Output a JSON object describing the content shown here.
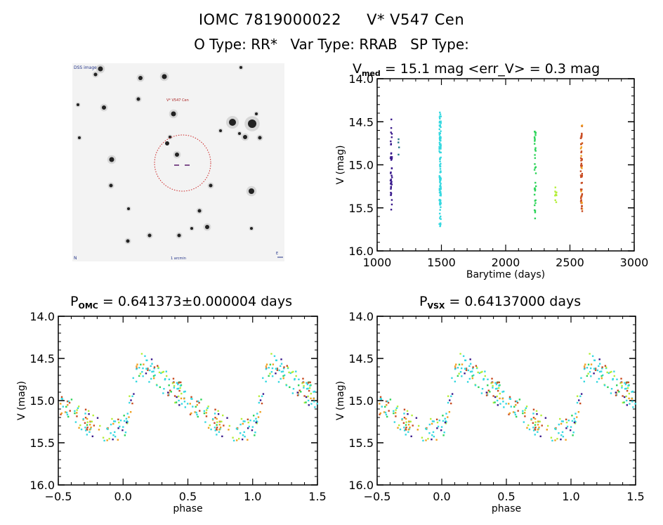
{
  "header": {
    "id": "IOMC 7819000022",
    "name": "V* V547 Cen",
    "otype_label": "O Type:",
    "otype": "RR*",
    "vartype_label": "Var Type:",
    "vartype": "RRAB",
    "sptype_label": "SP Type:",
    "sptype": ""
  },
  "image_panel": {
    "label_top_left": "DSS image",
    "label_target": "V* V547 Cen",
    "label_bottom_left": "N",
    "label_bottom_center": "1 arcmin",
    "label_bottom_right": "E",
    "circle_color": "#cc2222",
    "marker_color": "#5a1a6a"
  },
  "colors": {
    "epoch1": "#3a1a8c",
    "epoch1b": "#2a7a8a",
    "epoch2": "#35d8e0",
    "epoch3": "#2ed45a",
    "epoch4": "#b4ee3a",
    "epoch5": "#c84a20",
    "epoch5b": "#f0a020"
  },
  "chart_data": [
    {
      "type": "scatter",
      "title_main": "V",
      "title_sub": "med",
      "title_rest": " = 15.1 mag <err_V> = 0.3 mag",
      "xlabel": "Barytime (days)",
      "ylabel": "V (mag)",
      "xlim": [
        1000,
        3000
      ],
      "ylim": [
        16.0,
        14.0
      ],
      "xticks": [
        "1000",
        "1500",
        "2000",
        "2500",
        "3000"
      ],
      "yticks": [
        "14.0",
        "14.5",
        "15.0",
        "15.5",
        "16.0"
      ],
      "series": [
        {
          "name": "epoch1",
          "color": "#3a1a8c",
          "x": 1110,
          "vmin": 14.45,
          "vmax": 15.55,
          "n": 40
        },
        {
          "name": "epoch1b",
          "color": "#2a7a8a",
          "x": 1165,
          "vmin": 14.7,
          "vmax": 14.9,
          "n": 4
        },
        {
          "name": "epoch2",
          "color": "#35d8e0",
          "x": 1490,
          "vmin": 14.38,
          "vmax": 15.72,
          "n": 120
        },
        {
          "name": "epoch3",
          "color": "#2ed45a",
          "x": 2230,
          "vmin": 14.6,
          "vmax": 15.63,
          "n": 35
        },
        {
          "name": "epoch4",
          "color": "#b4ee3a",
          "x": 2390,
          "vmin": 15.25,
          "vmax": 15.45,
          "n": 10
        },
        {
          "name": "epoch5",
          "color": "#c84a20",
          "x": 2590,
          "vmin": 14.53,
          "vmax": 15.55,
          "n": 60
        }
      ]
    },
    {
      "type": "scatter",
      "title_main": "P",
      "title_sub": "OMC",
      "title_rest": " = 0.641373±0.000004 days",
      "xlabel": "phase",
      "ylabel": "V (mag)",
      "xlim": [
        -0.5,
        1.5
      ],
      "ylim": [
        16.0,
        14.0
      ],
      "xticks": [
        "-0.5",
        "0.0",
        "0.5",
        "1.0",
        "1.5"
      ],
      "yticks": [
        "14.0",
        "14.5",
        "15.0",
        "15.5",
        "16.0"
      ],
      "lightcurve": {
        "min_phase": 0.08,
        "max_mag": 14.55,
        "min_mag": 15.35,
        "scatter": 0.15,
        "n_per_cycle": 200
      }
    },
    {
      "type": "scatter",
      "title_main": "P",
      "title_sub": "VSX",
      "title_rest": " = 0.64137000 days",
      "xlabel": "phase",
      "ylabel": "V (mag)",
      "xlim": [
        -0.5,
        1.5
      ],
      "ylim": [
        16.0,
        14.0
      ],
      "xticks": [
        "-0.5",
        "0.0",
        "0.5",
        "1.0",
        "1.5"
      ],
      "yticks": [
        "14.0",
        "14.5",
        "15.0",
        "15.5",
        "16.0"
      ],
      "lightcurve": {
        "min_phase": 0.08,
        "max_mag": 14.55,
        "min_mag": 15.35,
        "scatter": 0.15,
        "n_per_cycle": 200
      }
    }
  ]
}
